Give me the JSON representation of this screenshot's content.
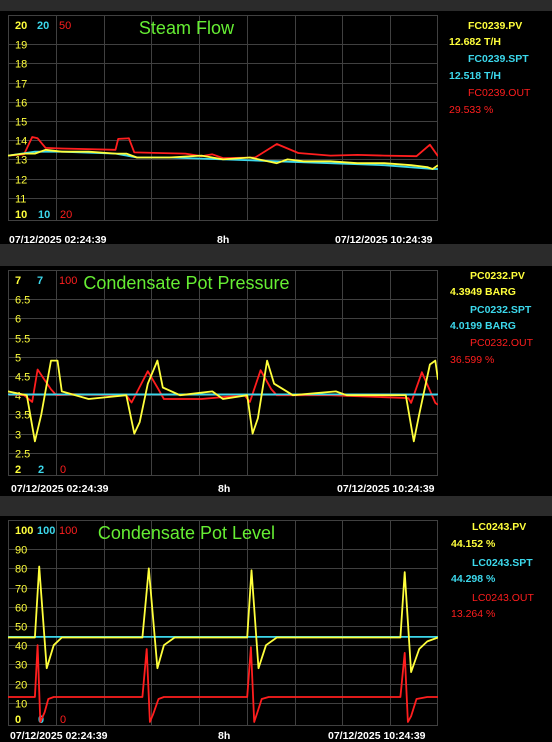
{
  "colors": {
    "pv": "#ffff3c",
    "spt": "#3cd8ec",
    "out": "#ff1e1e",
    "title": "#66ee33",
    "grid": "#404040",
    "background": "#000000"
  },
  "panels": [
    {
      "title": "Steam Flow",
      "y_ticks": [
        "19",
        "18",
        "17",
        "16",
        "15",
        "14",
        "13",
        "12",
        "11"
      ],
      "top_labels": {
        "pv": "20",
        "spt": "20",
        "out": "50"
      },
      "bottom_labels": {
        "pv": "10",
        "spt": "10",
        "out": "20"
      },
      "time_start": "07/12/2025 02:24:39",
      "time_mid": "8h",
      "time_end": "07/12/2025 10:24:39",
      "legend": [
        {
          "tag": "FC0239.PV",
          "value": "12.682 T/H"
        },
        {
          "tag": "FC0239.SPT",
          "value": "12.518 T/H"
        },
        {
          "tag": "FC0239.OUT",
          "value": "29.533 %"
        }
      ]
    },
    {
      "title": "Condensate Pot Pressure",
      "y_ticks": [
        "6.5",
        "6",
        "5.5",
        "5",
        "4.5",
        "4",
        "3.5",
        "3",
        "2.5"
      ],
      "top_labels": {
        "pv": "7",
        "spt": "7",
        "out": "100"
      },
      "bottom_labels": {
        "pv": "2",
        "spt": "2",
        "out": "0"
      },
      "time_start": "07/12/2025 02:24:39",
      "time_mid": "8h",
      "time_end": "07/12/2025 10:24:39",
      "legend": [
        {
          "tag": "PC0232.PV",
          "value": "4.3949 BARG"
        },
        {
          "tag": "PC0232.SPT",
          "value": "4.0199 BARG"
        },
        {
          "tag": "PC0232.OUT",
          "value": "36.599 %"
        }
      ]
    },
    {
      "title": "Condensate Pot Level",
      "y_ticks": [
        "90",
        "80",
        "70",
        "60",
        "50",
        "40",
        "30",
        "20",
        "10"
      ],
      "top_labels": {
        "pv": "100",
        "spt": "100",
        "out": "100"
      },
      "bottom_labels": {
        "pv": "0",
        "spt": "0",
        "out": "0"
      },
      "time_start": "07/12/2025 02:24:39",
      "time_mid": "8h",
      "time_end": "07/12/2025 10:24:39",
      "legend": [
        {
          "tag": "LC0243.PV",
          "value": "44.152 %"
        },
        {
          "tag": "LC0243.SPT",
          "value": "44.298 %"
        },
        {
          "tag": "LC0243.OUT",
          "value": "13.264 %"
        }
      ]
    }
  ],
  "chart_data": [
    {
      "type": "line",
      "title": "Steam Flow",
      "x_range": [
        "07/12/2025 02:24:39",
        "07/12/2025 10:24:39"
      ],
      "x_unit": "hours since 02:24:39",
      "ylim": [
        10,
        20
      ],
      "series": [
        {
          "name": "FC0239.PV",
          "axis": [
            10,
            20
          ],
          "unit": "T/H",
          "x": [
            0,
            0.3,
            0.5,
            0.7,
            1.0,
            1.5,
            2.0,
            2.2,
            2.4,
            3.0,
            3.6,
            4.0,
            4.5,
            5.0,
            5.2,
            5.5,
            6.0,
            6.5,
            7.0,
            7.5,
            7.8,
            7.9,
            8.0
          ],
          "values": [
            13.2,
            13.3,
            13.3,
            13.5,
            13.4,
            13.4,
            13.3,
            13.3,
            13.1,
            13.1,
            13.2,
            13.0,
            13.1,
            12.8,
            13.0,
            12.9,
            12.9,
            12.8,
            12.8,
            12.7,
            12.6,
            12.5,
            12.7
          ]
        },
        {
          "name": "FC0239.SPT",
          "axis": [
            10,
            20
          ],
          "unit": "T/H",
          "x": [
            0,
            0.5,
            1.0,
            2.0,
            2.4,
            3.0,
            4.0,
            5.0,
            6.0,
            7.0,
            7.9,
            8.0
          ],
          "values": [
            13.2,
            13.4,
            13.4,
            13.3,
            13.1,
            13.1,
            13.0,
            12.9,
            12.8,
            12.7,
            12.5,
            12.5
          ]
        },
        {
          "name": "FC0239.OUT",
          "axis": [
            20,
            50
          ],
          "unit": "%",
          "x": [
            0,
            0.3,
            0.45,
            0.55,
            0.7,
            1.0,
            2.0,
            2.05,
            2.25,
            2.35,
            2.8,
            3.3,
            3.6,
            3.8,
            4.0,
            4.6,
            5.0,
            5.4,
            6.0,
            6.5,
            7.0,
            7.6,
            7.85,
            8.0
          ],
          "values": [
            29.6,
            29.8,
            32.5,
            32.3,
            30.8,
            30.7,
            30.5,
            32.2,
            32.3,
            30.1,
            30.0,
            29.9,
            29.5,
            29.8,
            29.2,
            29.3,
            31.4,
            30.0,
            29.6,
            29.7,
            29.6,
            29.5,
            31.3,
            29.5
          ]
        }
      ]
    },
    {
      "type": "line",
      "title": "Condensate Pot Pressure",
      "x_range": [
        "07/12/2025 02:24:39",
        "07/12/2025 10:24:39"
      ],
      "x_unit": "hours since 02:24:39",
      "ylim": [
        2,
        7
      ],
      "series": [
        {
          "name": "PC0232.PV",
          "axis": [
            2,
            7
          ],
          "unit": "BARG",
          "x": [
            0,
            0.35,
            0.5,
            0.62,
            0.8,
            0.92,
            1.0,
            1.5,
            2.2,
            2.35,
            2.45,
            2.6,
            2.78,
            2.88,
            3.2,
            3.8,
            4.0,
            4.45,
            4.55,
            4.65,
            4.82,
            4.95,
            5.3,
            6.1,
            6.3,
            7.4,
            7.55,
            7.65,
            7.85,
            7.95,
            8.0
          ],
          "values": [
            4.1,
            4.0,
            2.8,
            3.5,
            4.9,
            4.9,
            4.1,
            3.9,
            4.0,
            3.0,
            3.3,
            4.3,
            4.9,
            4.2,
            4.0,
            4.1,
            3.9,
            4.0,
            3.0,
            3.4,
            4.9,
            4.3,
            4.0,
            4.1,
            4.0,
            4.0,
            2.8,
            3.5,
            4.8,
            4.9,
            4.4
          ]
        },
        {
          "name": "PC0232.SPT",
          "axis": [
            2,
            7
          ],
          "unit": "BARG",
          "x": [
            0,
            8.0
          ],
          "values": [
            4.02,
            4.02
          ]
        },
        {
          "name": "PC0232.OUT",
          "axis": [
            0,
            100
          ],
          "unit": "%",
          "x": [
            0,
            0.3,
            0.45,
            0.55,
            0.8,
            0.9,
            1.2,
            2.2,
            2.3,
            2.6,
            2.78,
            2.9,
            3.6,
            4.4,
            4.5,
            4.7,
            4.9,
            5.0,
            6.0,
            7.45,
            7.5,
            7.7,
            7.95,
            8.0
          ],
          "values": [
            40.5,
            40.0,
            36.5,
            53.4,
            43.0,
            40.0,
            40.5,
            40.0,
            36.2,
            52.5,
            44.0,
            38.0,
            38.0,
            40.0,
            36.5,
            53.0,
            43.0,
            40.0,
            40.0,
            38.5,
            36.0,
            52.0,
            36.0,
            35.0
          ]
        }
      ]
    },
    {
      "type": "line",
      "title": "Condensate Pot Level",
      "x_range": [
        "07/12/2025 02:24:39",
        "07/12/2025 10:24:39"
      ],
      "x_unit": "hours since 02:24:39",
      "ylim": [
        0,
        100
      ],
      "series": [
        {
          "name": "LC0243.PV",
          "axis": [
            0,
            100
          ],
          "unit": "%",
          "x": [
            0,
            0.5,
            0.58,
            0.72,
            0.85,
            1.0,
            1.4,
            2.5,
            2.62,
            2.78,
            2.9,
            3.1,
            4.0,
            4.45,
            4.53,
            4.66,
            4.8,
            5.0,
            6.0,
            7.3,
            7.38,
            7.5,
            7.65,
            7.8,
            8.0
          ],
          "values": [
            44,
            44,
            81,
            28,
            40,
            44,
            44,
            44,
            80,
            28,
            40,
            44,
            44,
            44,
            79,
            28,
            40,
            44,
            44,
            44,
            78,
            26,
            38,
            42,
            44
          ]
        },
        {
          "name": "LC0243.SPT",
          "axis": [
            0,
            100
          ],
          "unit": "%",
          "x": [
            0,
            8.0
          ],
          "values": [
            44.3,
            44.3
          ]
        },
        {
          "name": "LC0243.OUT",
          "axis": [
            0,
            100
          ],
          "unit": "%",
          "x": [
            0,
            0.5,
            0.55,
            0.6,
            0.68,
            0.75,
            0.85,
            1.0,
            1.4,
            2.5,
            2.58,
            2.64,
            2.7,
            2.8,
            2.9,
            3.1,
            4.0,
            4.45,
            4.52,
            4.58,
            4.64,
            4.72,
            4.85,
            5.0,
            6.0,
            7.3,
            7.38,
            7.44,
            7.5,
            7.6,
            7.8,
            8.0
          ],
          "values": [
            13,
            13,
            40,
            0,
            5,
            12,
            13,
            13,
            13,
            13,
            38,
            0,
            4,
            12,
            13,
            13,
            13,
            13,
            39,
            0,
            5,
            12,
            13,
            13,
            13,
            13,
            36,
            0,
            3,
            12,
            13,
            13
          ]
        }
      ]
    }
  ]
}
